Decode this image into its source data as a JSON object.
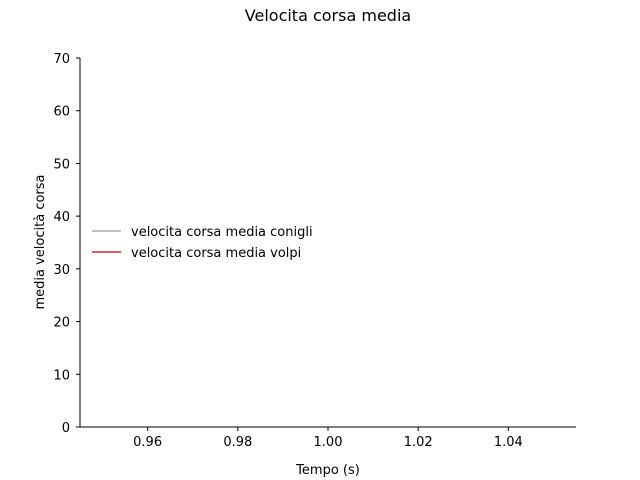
{
  "chart_data": {
    "type": "line",
    "title": "Velocita corsa media",
    "xlabel": "Tempo (s)",
    "ylabel": "media velocità corsa",
    "xlim": [
      0.945,
      1.055
    ],
    "ylim": [
      0,
      70
    ],
    "xticks": [
      0.96,
      0.98,
      1.0,
      1.02,
      1.04
    ],
    "xtick_labels": [
      "0.96",
      "0.98",
      "1.00",
      "1.02",
      "1.04"
    ],
    "yticks": [
      0,
      10,
      20,
      30,
      40,
      50,
      60,
      70
    ],
    "ytick_labels": [
      "0",
      "10",
      "20",
      "30",
      "40",
      "50",
      "60",
      "70"
    ],
    "grid": false,
    "legend_position": "center-left",
    "series": [
      {
        "name": "velocita corsa media conigli",
        "color": "#aaaaaa",
        "x": [],
        "y": []
      },
      {
        "name": "velocita corsa media volpi",
        "color": "#d62728",
        "x": [],
        "y": []
      }
    ]
  }
}
